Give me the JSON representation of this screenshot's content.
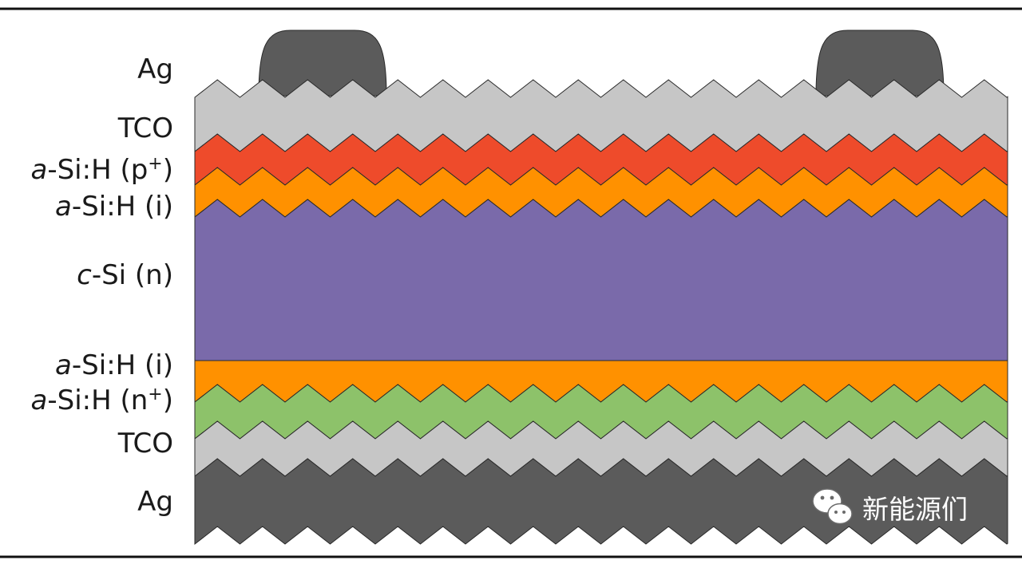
{
  "layers": [
    {
      "id": "ag-top",
      "label": "Ag",
      "color": "#5b5b5b"
    },
    {
      "id": "tco-top",
      "label": "TCO",
      "color": "#c6c6c6"
    },
    {
      "id": "asi-p",
      "label_prefix": "a",
      "label_rest": "-Si:H (p",
      "label_sup": "+",
      "label_suffix": ")",
      "color": "#ee4b2b"
    },
    {
      "id": "asi-i-top",
      "label_prefix": "a",
      "label_rest": "-Si:H (i)",
      "color": "#ff9100"
    },
    {
      "id": "csi",
      "label_prefix": "c",
      "label_rest": "-Si (n)",
      "color": "#7a6aaa"
    },
    {
      "id": "asi-i-bottom",
      "label_prefix": "a",
      "label_rest": "-Si:H (i)",
      "color": "#ff9100"
    },
    {
      "id": "asi-n",
      "label_prefix": "a",
      "label_rest": "-Si:H (n",
      "label_sup": "+",
      "label_suffix": ")",
      "color": "#8dc26a"
    },
    {
      "id": "tco-bottom",
      "label": "TCO",
      "color": "#c6c6c6"
    },
    {
      "id": "ag-bottom",
      "label": "Ag",
      "color": "#5b5b5b"
    }
  ],
  "watermark": {
    "text": "新能源们",
    "icon": "wechat-icon"
  }
}
